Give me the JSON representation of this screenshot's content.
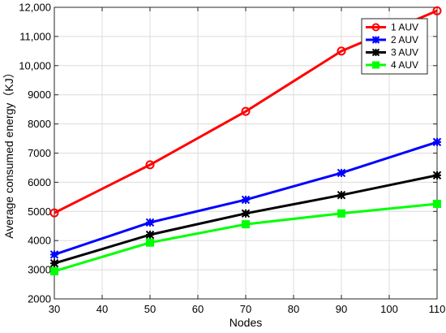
{
  "chart_data": {
    "type": "line",
    "xlabel": "Nodes",
    "ylabel": "Average consumed energy（KJ）",
    "x": [
      30,
      50,
      70,
      90,
      110
    ],
    "xlim": [
      30,
      110
    ],
    "ylim": [
      2000,
      12000
    ],
    "xticks": [
      30,
      40,
      50,
      60,
      70,
      80,
      90,
      100,
      110
    ],
    "yticks": [
      2000,
      3000,
      4000,
      5000,
      6000,
      7000,
      8000,
      9000,
      10000,
      11000,
      12000
    ],
    "xtick_labels": [
      "30",
      "40",
      "50",
      "60",
      "70",
      "80",
      "90",
      "100",
      "110"
    ],
    "ytick_labels": [
      "2000",
      "3000",
      "4000",
      "5000",
      "6000",
      "7000",
      "8000",
      "9000",
      "10,000",
      "11,000",
      "12,000"
    ],
    "grid": true,
    "legend_position": "top-right",
    "series": [
      {
        "name": "1 AUV",
        "values": [
          4950,
          6600,
          8430,
          10500,
          11880
        ],
        "color": "#ff0000",
        "marker": "circle"
      },
      {
        "name": "2 AUV",
        "values": [
          3520,
          4620,
          5400,
          6320,
          7380
        ],
        "color": "#0000ff",
        "marker": "asterisk-square"
      },
      {
        "name": "3 AUV",
        "values": [
          3220,
          4200,
          4930,
          5560,
          6240
        ],
        "color": "#000000",
        "marker": "asterisk-square"
      },
      {
        "name": "4 AUV",
        "values": [
          2950,
          3930,
          4560,
          4930,
          5260
        ],
        "color": "#00ff00",
        "marker": "square"
      }
    ]
  }
}
